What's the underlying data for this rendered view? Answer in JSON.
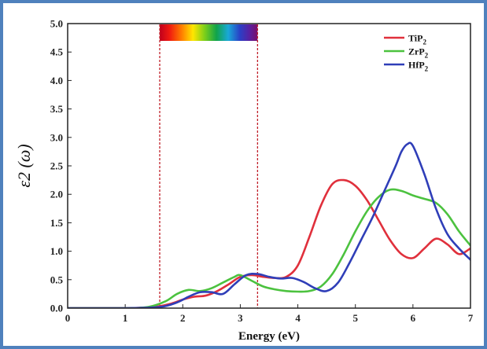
{
  "chart_data": {
    "type": "line",
    "xlabel": "Energy (eV)",
    "ylabel": "ε2 (ω)",
    "xlim": [
      0,
      7
    ],
    "ylim": [
      0,
      5
    ],
    "xticks": [
      "0",
      "1",
      "2",
      "3",
      "4",
      "5",
      "6",
      "7"
    ],
    "yticks": [
      "0.0",
      "0.5",
      "1.0",
      "1.5",
      "2.0",
      "2.5",
      "3.0",
      "3.5",
      "4.0",
      "4.5",
      "5.0"
    ],
    "visible_region": {
      "x_start": 1.6,
      "x_end": 3.3
    },
    "legend_position": "top-right",
    "series": [
      {
        "name": "TiP",
        "name_sub": "2",
        "color": "#e0303c",
        "x": [
          0,
          1.0,
          1.5,
          1.8,
          2.0,
          2.2,
          2.4,
          2.6,
          2.8,
          3.0,
          3.2,
          3.4,
          3.6,
          3.8,
          4.0,
          4.2,
          4.4,
          4.6,
          4.8,
          5.0,
          5.2,
          5.4,
          5.6,
          5.8,
          6.0,
          6.2,
          6.4,
          6.6,
          6.8,
          7.0
        ],
        "y": [
          0,
          0.0,
          0.02,
          0.08,
          0.15,
          0.2,
          0.22,
          0.3,
          0.42,
          0.55,
          0.58,
          0.55,
          0.53,
          0.55,
          0.75,
          1.25,
          1.8,
          2.18,
          2.25,
          2.15,
          1.9,
          1.55,
          1.2,
          0.95,
          0.88,
          1.05,
          1.22,
          1.12,
          0.95,
          1.05
        ]
      },
      {
        "name": "ZrP",
        "name_sub": "2",
        "color": "#4cc23f",
        "x": [
          0,
          1.0,
          1.4,
          1.7,
          1.9,
          2.1,
          2.3,
          2.5,
          2.7,
          2.9,
          3.0,
          3.2,
          3.4,
          3.6,
          3.8,
          4.0,
          4.2,
          4.4,
          4.6,
          4.8,
          5.0,
          5.2,
          5.4,
          5.6,
          5.8,
          6.0,
          6.2,
          6.4,
          6.6,
          6.8,
          7.0
        ],
        "y": [
          0,
          0.0,
          0.02,
          0.12,
          0.25,
          0.32,
          0.3,
          0.35,
          0.45,
          0.55,
          0.58,
          0.48,
          0.38,
          0.33,
          0.3,
          0.29,
          0.3,
          0.38,
          0.6,
          0.95,
          1.35,
          1.7,
          1.95,
          2.08,
          2.06,
          1.98,
          1.92,
          1.85,
          1.65,
          1.35,
          1.1
        ]
      },
      {
        "name": "HfP",
        "name_sub": "2",
        "color": "#2f3eb8",
        "x": [
          0,
          1.0,
          1.6,
          1.9,
          2.1,
          2.3,
          2.5,
          2.7,
          2.9,
          3.1,
          3.3,
          3.5,
          3.7,
          3.9,
          4.1,
          4.3,
          4.5,
          4.7,
          4.9,
          5.1,
          5.3,
          5.5,
          5.7,
          5.8,
          5.9,
          6.0,
          6.2,
          6.4,
          6.6,
          6.8,
          7.0
        ],
        "y": [
          0,
          0.0,
          0.02,
          0.1,
          0.2,
          0.28,
          0.28,
          0.25,
          0.42,
          0.58,
          0.6,
          0.55,
          0.52,
          0.53,
          0.46,
          0.35,
          0.3,
          0.45,
          0.8,
          1.2,
          1.6,
          2.05,
          2.5,
          2.75,
          2.88,
          2.85,
          2.35,
          1.75,
          1.3,
          1.05,
          0.85
        ]
      }
    ]
  }
}
